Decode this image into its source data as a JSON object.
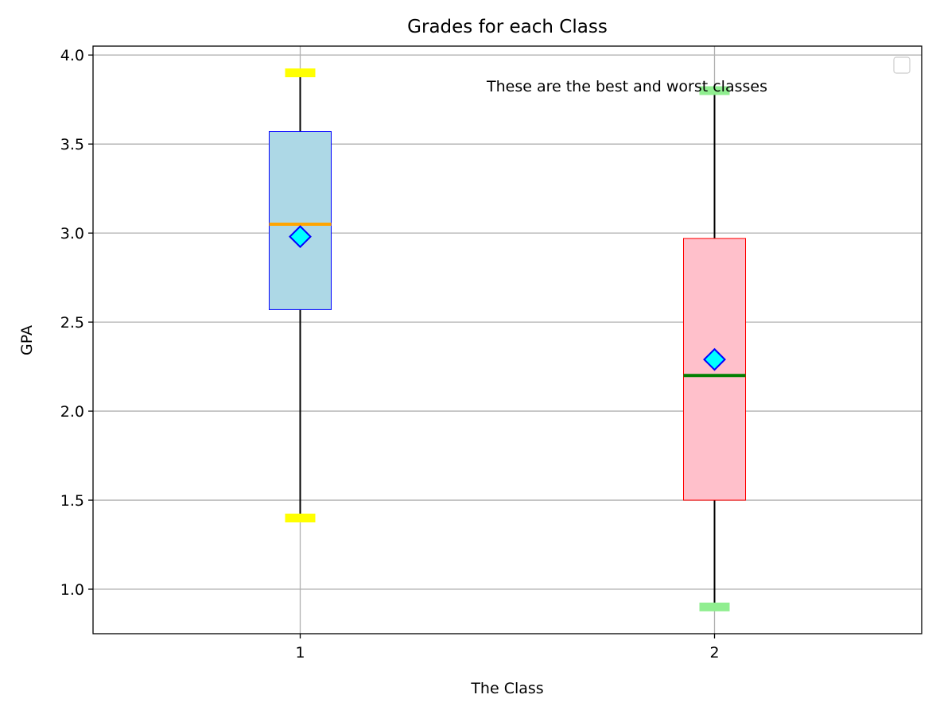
{
  "chart_data": {
    "type": "box",
    "title": "Grades for each Class",
    "xlabel": "The Class",
    "ylabel": "GPA",
    "categories": [
      "1",
      "2"
    ],
    "ylim": [
      0.75,
      4.05
    ],
    "yticks": [
      1.0,
      1.5,
      2.0,
      2.5,
      3.0,
      3.5,
      4.0
    ],
    "ytick_labels": [
      "1.0",
      "1.5",
      "2.0",
      "2.5",
      "3.0",
      "3.5",
      "4.0"
    ],
    "grid": true,
    "legend": "top-right",
    "annotation": {
      "text": "These are the best and worst classes",
      "x": 2.4,
      "y": 3.8
    },
    "boxes": [
      {
        "category": "1",
        "whisker_low": 1.4,
        "q1": 2.57,
        "median": 3.05,
        "q3": 3.57,
        "whisker_high": 3.9,
        "mean": 2.98,
        "box_fill": "#add8e6",
        "box_edge": "#0000ff",
        "median_color": "#ffa500",
        "cap_color": "#ffff00"
      },
      {
        "category": "2",
        "whisker_low": 0.9,
        "q1": 1.5,
        "median": 2.2,
        "q3": 2.97,
        "whisker_high": 3.8,
        "mean": 2.29,
        "box_fill": "#ffc0cb",
        "box_edge": "#ff0000",
        "median_color": "#008000",
        "cap_color": "#90ee90"
      }
    ],
    "mean_marker": {
      "shape": "diamond",
      "fill": "#00ffff",
      "edge": "#0000ff"
    },
    "colors": {
      "grid": "#b0b0b0",
      "axes": "#000000",
      "whisker": "#000000"
    }
  }
}
